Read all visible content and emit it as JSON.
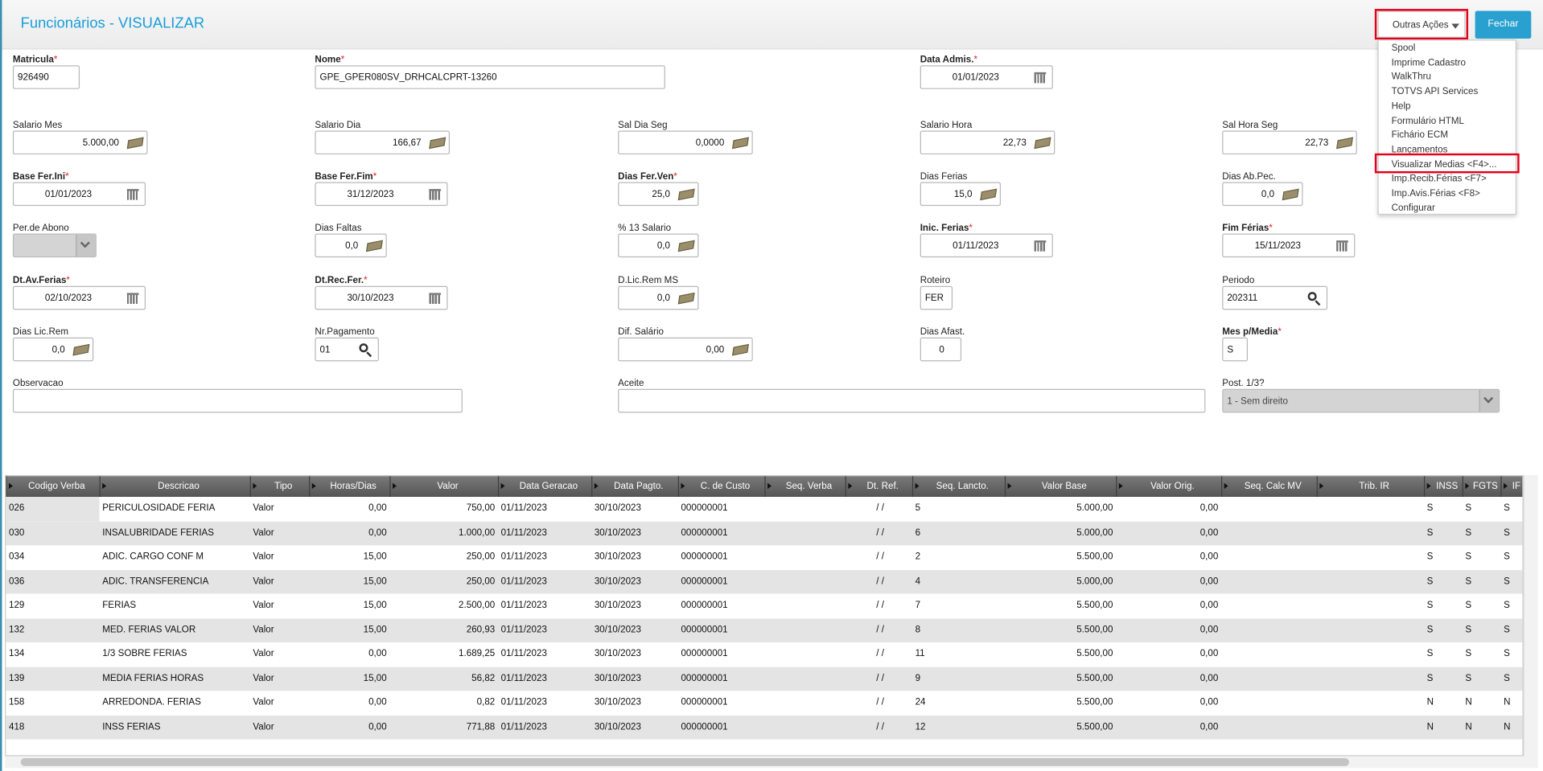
{
  "header": {
    "title": "Funcionários - VISUALIZAR",
    "actions_button": "Outras Ações",
    "close_button": "Fechar"
  },
  "menu": {
    "items": [
      "Spool",
      "Imprime Cadastro",
      "WalkThru",
      "TOTVS API Services",
      "Help",
      "Formulário HTML",
      "Fichário ECM",
      "Lançamentos",
      "Visualizar Medias <F4>...",
      "Imp.Recib.Férias <F7>",
      "Imp.Avis.Férias <F8>",
      "Configurar"
    ]
  },
  "form": {
    "required_mark": "*",
    "fields": [
      {
        "label": "Matricula",
        "value": "926490",
        "required": true
      },
      {
        "label": "Nome",
        "value": "GPE_GPER080SV_DRHCALCPRT-13260",
        "required": true
      },
      {
        "label": "Data Admis.",
        "value": "01/01/2023",
        "required": true
      },
      {
        "label": "Salario Mes",
        "value": "5.000,00",
        "required": false
      },
      {
        "label": "Salario Dia",
        "value": "166,67",
        "required": false
      },
      {
        "label": "Sal Dia Seg",
        "value": "0,0000",
        "required": false
      },
      {
        "label": "Salario Hora",
        "value": "22,73",
        "required": false
      },
      {
        "label": "Sal Hora Seg",
        "value": "22,73",
        "required": false
      },
      {
        "label": "Base Fer.Ini",
        "value": "01/01/2023",
        "required": true
      },
      {
        "label": "Base Fer.Fim",
        "value": "31/12/2023",
        "required": true
      },
      {
        "label": "Dias Fer.Ven",
        "value": "25,0",
        "required": true
      },
      {
        "label": "Dias Ferias",
        "value": "15,0",
        "required": false
      },
      {
        "label": "Dias Ab.Pec.",
        "value": "0,0",
        "required": false
      },
      {
        "label": "Per.de Abono",
        "value": null,
        "required": false
      },
      {
        "label": "Dias Faltas",
        "value": "0,0",
        "required": false
      },
      {
        "label": "% 13 Salario",
        "value": "0,0",
        "required": false
      },
      {
        "label": "Inic. Ferias",
        "value": "01/11/2023",
        "required": true
      },
      {
        "label": "Fim Férias",
        "value": "15/11/2023",
        "required": true
      },
      {
        "label": "Dt.Av.Ferias",
        "value": "02/10/2023",
        "required": true
      },
      {
        "label": "Dt.Rec.Fer.",
        "value": "30/10/2023",
        "required": true
      },
      {
        "label": "D.Lic.Rem MS",
        "value": "0,0",
        "required": false
      },
      {
        "label": "Roteiro",
        "value": "FER",
        "required": false
      },
      {
        "label": "Periodo",
        "value": "202311",
        "required": false
      },
      {
        "label": "Dias Lic.Rem",
        "value": "0,0",
        "required": false
      },
      {
        "label": "Nr.Pagamento",
        "value": "01",
        "required": false
      },
      {
        "label": "Dif. Salário",
        "value": "0,00",
        "required": false
      },
      {
        "label": "Dias Afast.",
        "value": "0",
        "required": false
      },
      {
        "label": "Mes p/Media",
        "value": "S",
        "required": true
      },
      {
        "label": "Observacao",
        "value": null,
        "required": false
      },
      {
        "label": "Aceite",
        "value": null,
        "required": false
      },
      {
        "label": "Post. 1/3?",
        "value": "1 - Sem direito",
        "required": false
      }
    ]
  },
  "table": {
    "columns": [
      "Codigo Verba",
      "Descricao",
      "Tipo",
      "Horas/Dias",
      "Valor",
      "Data Geracao",
      "Data Pagto.",
      "C. de Custo",
      "Seq. Verba",
      "Dt. Ref.",
      "Seq. Lancto.",
      "Valor Base",
      "Valor Orig.",
      "Seq. Calc MV",
      "Trib. IR",
      "INSS",
      "FGTS",
      "IF"
    ],
    "rows": [
      [
        "026",
        "PERICULOSIDADE FERIA",
        "Valor",
        "0,00",
        "750,00",
        "01/11/2023",
        "30/10/2023",
        "000000001",
        null,
        "/ /",
        "5",
        "5.000,00",
        "0,00",
        null,
        null,
        "S",
        "S",
        "S"
      ],
      [
        "030",
        "INSALUBRIDADE FERIAS",
        "Valor",
        "0,00",
        "1.000,00",
        "01/11/2023",
        "30/10/2023",
        "000000001",
        null,
        "/ /",
        "6",
        "5.000,00",
        "0,00",
        null,
        null,
        "S",
        "S",
        "S"
      ],
      [
        "034",
        "ADIC. CARGO CONF M",
        "Valor",
        "15,00",
        "250,00",
        "01/11/2023",
        "30/10/2023",
        "000000001",
        null,
        "/ /",
        "2",
        "5.500,00",
        "0,00",
        null,
        null,
        "S",
        "S",
        "S"
      ],
      [
        "036",
        "ADIC. TRANSFERENCIA",
        "Valor",
        "15,00",
        "250,00",
        "01/11/2023",
        "30/10/2023",
        "000000001",
        null,
        "/ /",
        "4",
        "5.000,00",
        "0,00",
        null,
        null,
        "S",
        "S",
        "S"
      ],
      [
        "129",
        "FERIAS",
        "Valor",
        "15,00",
        "2.500,00",
        "01/11/2023",
        "30/10/2023",
        "000000001",
        null,
        "/ /",
        "7",
        "5.500,00",
        "0,00",
        null,
        null,
        "S",
        "S",
        "S"
      ],
      [
        "132",
        "MED. FERIAS VALOR",
        "Valor",
        "15,00",
        "260,93",
        "01/11/2023",
        "30/10/2023",
        "000000001",
        null,
        "/ /",
        "8",
        "5.500,00",
        "0,00",
        null,
        null,
        "S",
        "S",
        "S"
      ],
      [
        "134",
        "1/3 SOBRE FERIAS",
        "Valor",
        "0,00",
        "1.689,25",
        "01/11/2023",
        "30/10/2023",
        "000000001",
        null,
        "/ /",
        "11",
        "5.500,00",
        "0,00",
        null,
        null,
        "S",
        "S",
        "S"
      ],
      [
        "139",
        "MEDIA FERIAS HORAS",
        "Valor",
        "15,00",
        "56,82",
        "01/11/2023",
        "30/10/2023",
        "000000001",
        null,
        "/ /",
        "9",
        "5.500,00",
        "0,00",
        null,
        null,
        "S",
        "S",
        "S"
      ],
      [
        "158",
        "ARREDONDA. FERIAS",
        "Valor",
        "0,00",
        "0,82",
        "01/11/2023",
        "30/10/2023",
        "000000001",
        null,
        "/ /",
        "24",
        "5.500,00",
        "0,00",
        null,
        null,
        "N",
        "N",
        "N"
      ],
      [
        "418",
        "INSS FERIAS",
        "Valor",
        "0,00",
        "771,88",
        "01/11/2023",
        "30/10/2023",
        "000000001",
        null,
        "/ /",
        "12",
        "5.500,00",
        "0,00",
        null,
        null,
        "N",
        "N",
        "N"
      ]
    ]
  }
}
